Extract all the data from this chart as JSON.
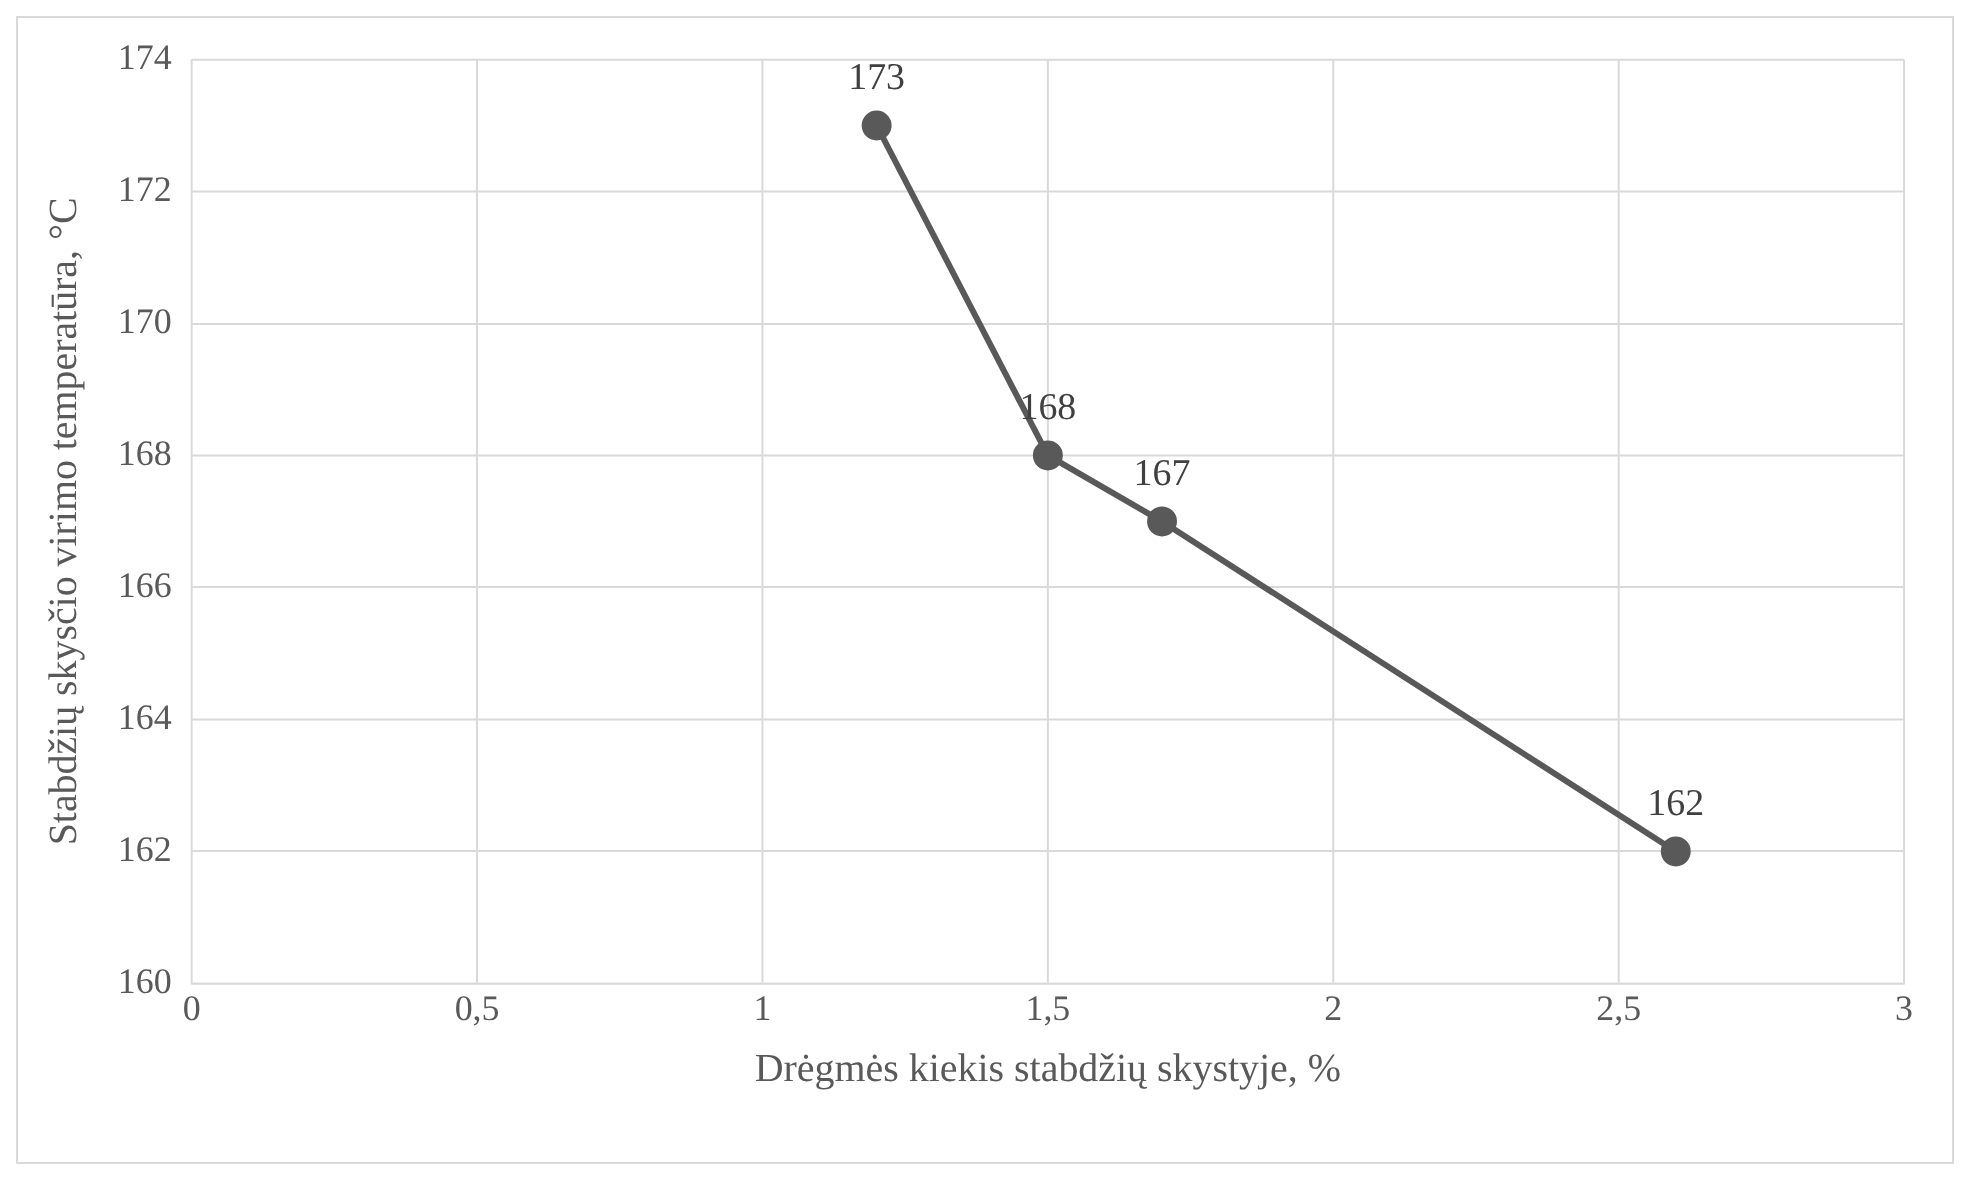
{
  "chart_data": {
    "type": "line",
    "xlabel": "Drėgmės kiekis stabdžių skystyje, %",
    "ylabel": "Stabdžių skysčio virimo temperatūra, °C",
    "x": [
      1.2,
      1.5,
      1.7,
      2.6
    ],
    "series": [
      {
        "color": "#595959",
        "values": [
          173,
          168,
          167,
          162
        ]
      }
    ],
    "xlim": [
      0,
      3
    ],
    "xticks": [
      0,
      {
        "value": 0.5,
        "label": "0,5"
      },
      1,
      {
        "value": 1.5,
        "label": "1,5"
      },
      2,
      {
        "value": 2.5,
        "label": "2,5"
      },
      3
    ],
    "ylim": [
      160,
      174
    ],
    "yticks": [
      160,
      162,
      164,
      166,
      168,
      170,
      172,
      174
    ],
    "grid": true,
    "marker": "circle",
    "data_labels": true,
    "legend": false
  }
}
